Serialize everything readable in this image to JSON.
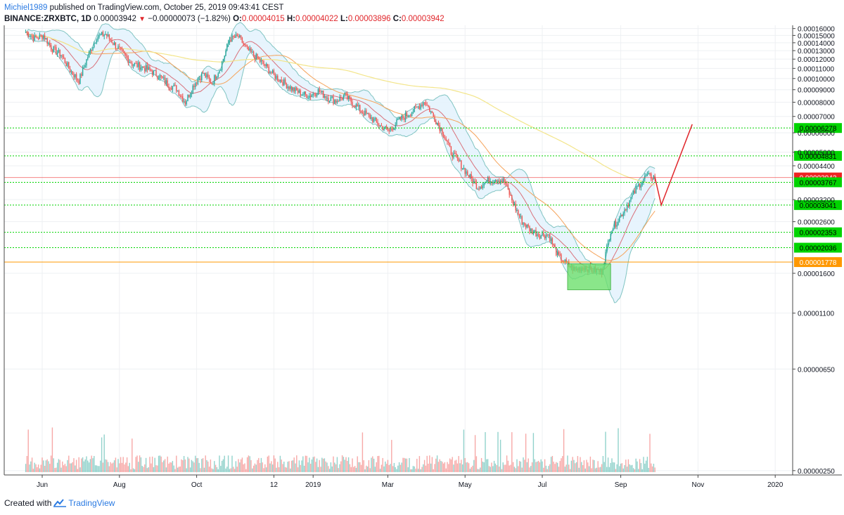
{
  "header": {
    "author": "Michiel1989",
    "published_text": "published on TradingView.com, October 25, 2019 09:43:41 CEST",
    "symbol": "BINANCE:ZRXBTC, 1D",
    "last": "0.00003942",
    "change": "−0.00000073 (−1.82%)",
    "open_label": "O:",
    "open": "0.00004015",
    "high_label": "H:",
    "high": "0.00004022",
    "low_label": "L:",
    "low": "0.00003896",
    "close_label": "C:",
    "close": "0.00003942"
  },
  "footer": {
    "created_with": "Created with",
    "brand": "TradingView"
  },
  "chart_data": {
    "type": "candlestick",
    "x_labels": [
      "Jun",
      "Aug",
      "Oct",
      "12",
      "2019",
      "Mar",
      "May",
      "Jul",
      "Sep",
      "Nov",
      "2020"
    ],
    "y_scale": "log",
    "y_ticks": [
      "0.00016000",
      "0.00015000",
      "0.00014000",
      "0.00013000",
      "0.00012000",
      "0.00011000",
      "0.00010000",
      "0.00009000",
      "0.00008000",
      "0.00007000",
      "0.00006000",
      "0.00005000",
      "0.00004400",
      "0.00003200",
      "0.00002600",
      "0.00001600",
      "0.00001100",
      "0.00000650",
      "0.00000250"
    ],
    "close_series": [
      0.000155,
      0.000146,
      0.00015,
      0.000132,
      0.000125,
      0.000108,
      9.8e-05,
      0.000123,
      0.000148,
      0.000152,
      0.000138,
      0.000126,
      0.000115,
      0.000112,
      0.000108,
      0.000103,
      9.5e-05,
      9.1e-05,
      8e-05,
      9.5e-05,
      0.000105,
      9.6e-05,
      0.000112,
      0.000145,
      0.000148,
      0.000131,
      0.000122,
      0.000113,
      0.000103,
      9.7e-05,
      9.1e-05,
      8.7e-05,
      8.5e-05,
      8.9e-05,
      8.4e-05,
      8.1e-05,
      8.5e-05,
      7.9e-05,
      7.3e-05,
      6.9e-05,
      6.4e-05,
      6.1e-05,
      6.7e-05,
      7.1e-05,
      7.5e-05,
      8.1e-05,
      7e-05,
      6.1e-05,
      5e-05,
      4.5e-05,
      4e-05,
      3.6e-05,
      3.8e-05,
      3.9e-05,
      3.8e-05,
      3.1e-05,
      2.6e-05,
      2.4e-05,
      2.3e-05,
      2.3e-05,
      1.9e-05,
      1.75e-05,
      1.65e-05,
      1.7e-05,
      1.65e-05,
      1.63e-05,
      2.4e-05,
      2.7e-05,
      3.1e-05,
      3.6e-05,
      4e-05,
      3.94e-05
    ],
    "horizontal_levels": [
      {
        "value": 6.278e-05,
        "label": "0.00006278",
        "color": "#00d400"
      },
      {
        "value": 4.831e-05,
        "label": "0.00004831",
        "color": "#00d400"
      },
      {
        "value": 3.942e-05,
        "label": "0.00003942",
        "color": "#ee2222"
      },
      {
        "value": 3.767e-05,
        "label": "0.00003767",
        "color": "#00d400"
      },
      {
        "value": 3.041e-05,
        "label": "0.00003041",
        "color": "#00d400"
      },
      {
        "value": 2.353e-05,
        "label": "0.00002353",
        "color": "#00d400"
      },
      {
        "value": 2.036e-05,
        "label": "0.00002036",
        "color": "#00d400"
      },
      {
        "value": 1.778e-05,
        "label": "0.00001778",
        "color": "#ff9800"
      }
    ],
    "projection": [
      3.942e-05,
      3.041e-05,
      6.5e-05
    ],
    "grid": true,
    "colors": {
      "up": "#26a69a",
      "down": "#ef5350",
      "bollinger_fill": "#e3f2fd",
      "bollinger_line": "#80c4c2",
      "ma_fast": "#d9707a",
      "ma_mid": "#f5a35a",
      "ma_slow": "#f3e58a",
      "projection": "#e0262b",
      "support": "#00d400",
      "accent": "#2a7ae2"
    }
  }
}
